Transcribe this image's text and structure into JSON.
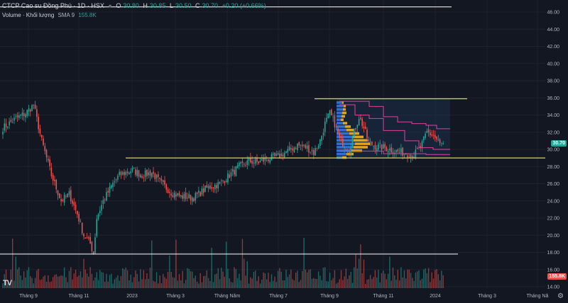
{
  "header": {
    "symbol_title": "CTCP Cao su Đồng Phú · 1D · HSX",
    "ohlc": [
      {
        "k": "O",
        "v": "30.80"
      },
      {
        "k": "H",
        "v": "30.85"
      },
      {
        "k": "L",
        "v": "30.50"
      },
      {
        "k": "C",
        "v": "30.70"
      }
    ],
    "change": "+0.20 (+0.66%)",
    "volume_label": "Volume · Khối lượng",
    "volume_ma": "SMA 9",
    "volume_value": "155.8K"
  },
  "price_axis": {
    "ticks": [
      "46.00",
      "44.00",
      "42.00",
      "40.00",
      "38.00",
      "36.00",
      "34.00",
      "32.00",
      "30.00",
      "28.00",
      "26.00",
      "24.00",
      "22.00",
      "20.00",
      "18.00",
      "16.00",
      "14.00"
    ],
    "last_price": "30.70",
    "last_volume": "155.8K"
  },
  "time_axis": {
    "labels": [
      "Tháng 9",
      "Tháng 11",
      "2023",
      "Tháng 3",
      "Tháng Năm",
      "Tháng 7",
      "Tháng 9",
      "Tháng 11",
      "2024",
      "Tháng 3",
      "Tháng Nă"
    ]
  },
  "colors": {
    "up": "#26a69a",
    "down": "#ef5350",
    "level_line": "#e6d23c",
    "support_line": "#ffffff",
    "profile_blue": "#2f6fd6",
    "profile_orange": "#e0a31c",
    "bands": "#e040a0"
  },
  "chart_data": {
    "type": "candlestick",
    "ylim": [
      14,
      46
    ],
    "horizontal_levels": [
      46.6,
      35.9,
      29.0,
      17.8
    ],
    "anchors": [
      [
        0,
        32.5
      ],
      [
        8,
        33.6
      ],
      [
        14,
        34.2
      ],
      [
        19,
        35.2
      ],
      [
        24,
        31.0
      ],
      [
        30,
        27.0
      ],
      [
        36,
        24.0
      ],
      [
        41,
        24.8
      ],
      [
        46,
        22.5
      ],
      [
        50,
        20.0
      ],
      [
        54,
        19.0
      ],
      [
        56,
        17.9
      ],
      [
        58,
        22.0
      ],
      [
        62,
        24.0
      ],
      [
        68,
        26.0
      ],
      [
        72,
        27.0
      ],
      [
        80,
        27.6
      ],
      [
        86,
        27.0
      ],
      [
        92,
        27.3
      ],
      [
        98,
        26.0
      ],
      [
        104,
        25.0
      ],
      [
        110,
        24.5
      ],
      [
        118,
        24.4
      ],
      [
        126,
        25.5
      ],
      [
        134,
        26.0
      ],
      [
        140,
        27.0
      ],
      [
        146,
        28.0
      ],
      [
        152,
        28.6
      ],
      [
        158,
        28.5
      ],
      [
        164,
        28.9
      ],
      [
        170,
        29.2
      ],
      [
        176,
        29.8
      ],
      [
        182,
        30.5
      ],
      [
        188,
        30.2
      ],
      [
        192,
        29.6
      ],
      [
        196,
        31.0
      ],
      [
        199,
        33.0
      ],
      [
        202,
        34.2
      ],
      [
        205,
        33.0
      ],
      [
        208,
        31.2
      ],
      [
        211,
        30.5
      ],
      [
        214,
        30.0
      ],
      [
        217,
        32.0
      ],
      [
        220,
        33.8
      ],
      [
        223,
        32.5
      ],
      [
        226,
        30.8
      ],
      [
        230,
        30.4
      ],
      [
        236,
        30.2
      ],
      [
        242,
        29.8
      ],
      [
        248,
        29.6
      ],
      [
        254,
        29.4
      ],
      [
        258,
        30.2
      ],
      [
        262,
        32.0
      ],
      [
        266,
        31.6
      ],
      [
        270,
        30.6
      ],
      [
        272,
        30.7
      ]
    ],
    "last_close": 30.7,
    "volume_ma_last": 155800
  }
}
